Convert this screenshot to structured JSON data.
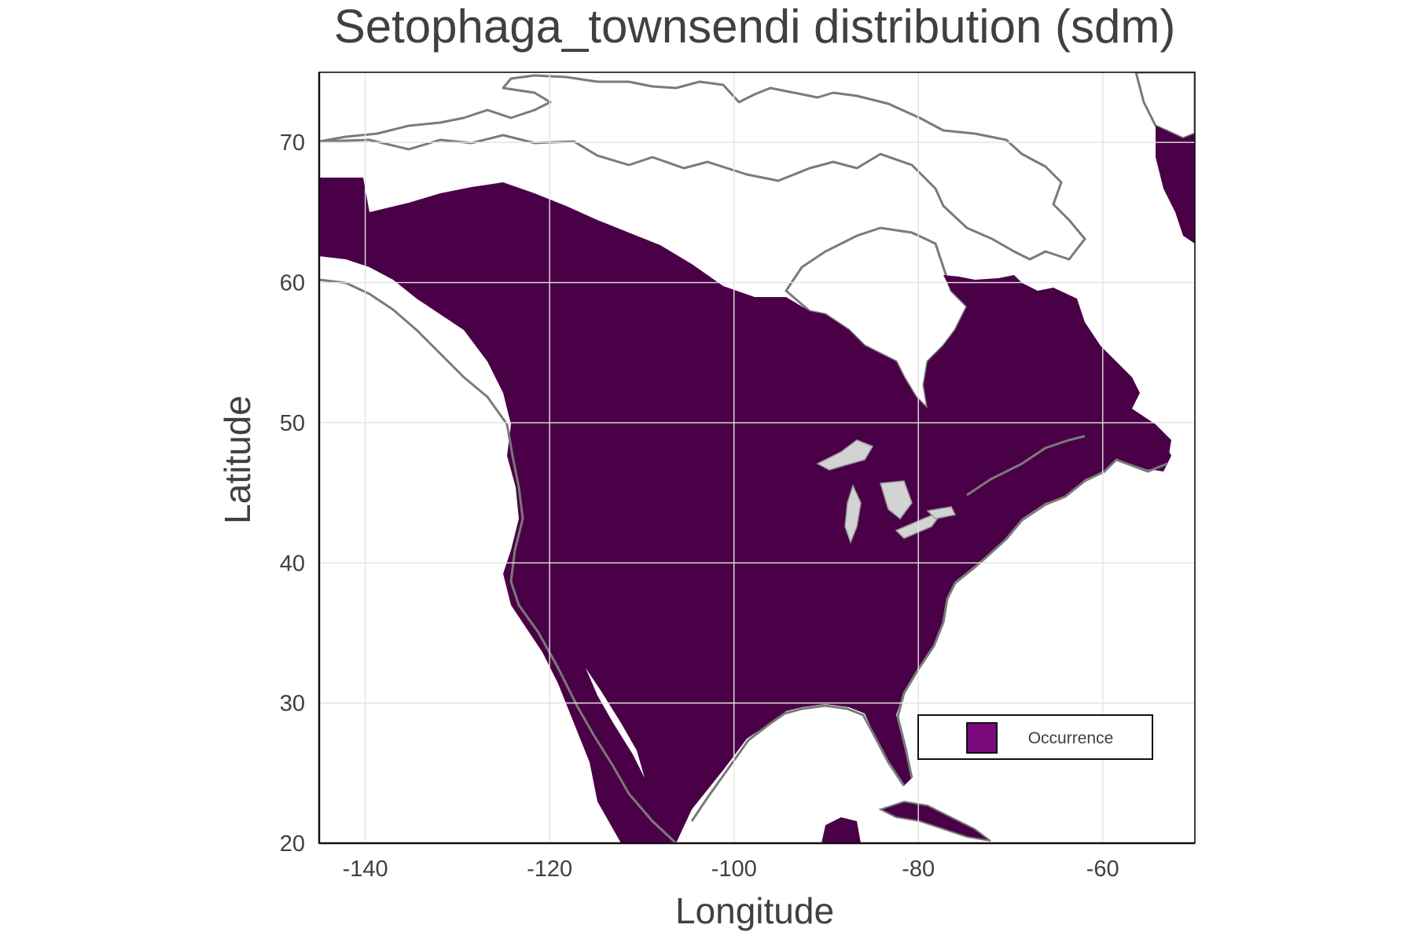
{
  "title": "Setophaga_townsendi distribution (sdm)",
  "xlabel": "Longitude",
  "ylabel": "Latitude",
  "axes": {
    "xlim": [
      -145,
      -50
    ],
    "ylim": [
      20,
      75
    ],
    "xticks": [
      -140,
      -120,
      -100,
      -80,
      -60
    ],
    "yticks": [
      20,
      30,
      40,
      50,
      60,
      70
    ],
    "xtick_labels": [
      "-140",
      "-120",
      "-100",
      "-80",
      "-60"
    ],
    "ytick_labels": [
      "20",
      "30",
      "40",
      "50",
      "60",
      "70"
    ],
    "grid": true
  },
  "legend": {
    "placement": "lower-right",
    "entries": [
      {
        "label": "Occurrence",
        "color": "#7a0a7c"
      }
    ]
  },
  "colors": {
    "occurrence": "#4a0046",
    "land_absent": "#d3d3d3",
    "coastline": "#7a7a7a",
    "water": "#ffffff",
    "legend_swatch": "#7a0a7c"
  }
}
